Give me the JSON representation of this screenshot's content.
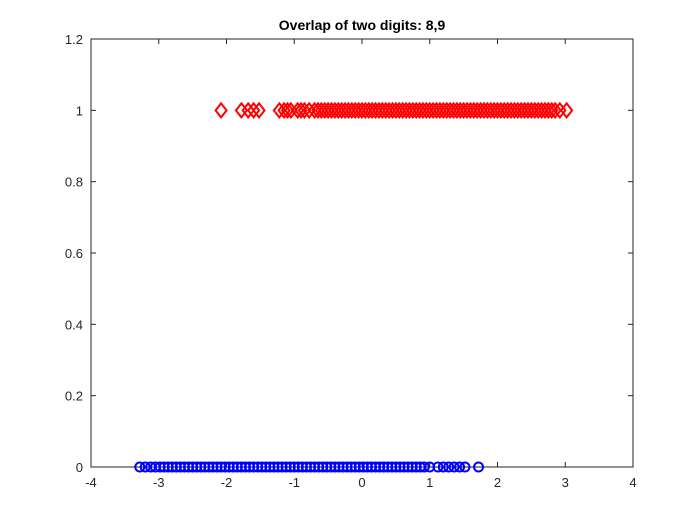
{
  "chart_data": {
    "type": "scatter",
    "title": "Overlap of two digits: 8,9",
    "xlabel": "",
    "ylabel": "",
    "xlim": [
      -4,
      4
    ],
    "ylim": [
      0,
      1.2
    ],
    "xticks": [
      "-4",
      "-3",
      "-2",
      "-1",
      "0",
      "1",
      "2",
      "3",
      "4"
    ],
    "yticks": [
      "0",
      "0.2",
      "0.4",
      "0.6",
      "0.8",
      "1",
      "1.2"
    ],
    "grid": false,
    "legend": "none",
    "series": [
      {
        "marker": "diamond",
        "color": "#ff0000",
        "y": 1,
        "x": [
          -2.08,
          -1.78,
          -1.68,
          -1.6,
          -1.52,
          -1.22,
          -1.15,
          -1.1,
          -1.05,
          -0.95,
          -0.9,
          -0.85,
          -0.78,
          -0.7,
          -0.65,
          -0.6,
          -0.55,
          -0.5,
          -0.45,
          -0.4,
          -0.35,
          -0.3,
          -0.25,
          -0.2,
          -0.15,
          -0.1,
          -0.05,
          0.0,
          0.05,
          0.1,
          0.15,
          0.2,
          0.25,
          0.3,
          0.35,
          0.4,
          0.45,
          0.5,
          0.55,
          0.6,
          0.65,
          0.7,
          0.75,
          0.8,
          0.85,
          0.9,
          0.95,
          1.0,
          1.05,
          1.1,
          1.15,
          1.2,
          1.25,
          1.3,
          1.35,
          1.4,
          1.45,
          1.5,
          1.55,
          1.6,
          1.65,
          1.7,
          1.75,
          1.8,
          1.85,
          1.9,
          1.95,
          2.0,
          2.05,
          2.1,
          2.15,
          2.2,
          2.25,
          2.3,
          2.35,
          2.4,
          2.45,
          2.5,
          2.55,
          2.6,
          2.65,
          2.7,
          2.75,
          2.8,
          2.85,
          2.92,
          3.02
        ]
      },
      {
        "marker": "circle",
        "color": "#0000ff",
        "y": 0,
        "x": [
          -3.28,
          -3.2,
          -3.12,
          -3.05,
          -2.98,
          -2.92,
          -2.86,
          -2.8,
          -2.74,
          -2.68,
          -2.62,
          -2.56,
          -2.5,
          -2.44,
          -2.38,
          -2.32,
          -2.26,
          -2.2,
          -2.14,
          -2.08,
          -2.02,
          -1.96,
          -1.9,
          -1.84,
          -1.78,
          -1.72,
          -1.66,
          -1.6,
          -1.54,
          -1.48,
          -1.42,
          -1.36,
          -1.3,
          -1.24,
          -1.18,
          -1.12,
          -1.06,
          -1.0,
          -0.94,
          -0.88,
          -0.82,
          -0.76,
          -0.7,
          -0.64,
          -0.58,
          -0.52,
          -0.46,
          -0.4,
          -0.34,
          -0.28,
          -0.22,
          -0.16,
          -0.1,
          -0.04,
          0.02,
          0.08,
          0.14,
          0.2,
          0.26,
          0.32,
          0.38,
          0.44,
          0.5,
          0.56,
          0.62,
          0.68,
          0.74,
          0.8,
          0.86,
          0.92,
          1.0,
          1.12,
          1.2,
          1.28,
          1.36,
          1.44,
          1.52,
          1.72
        ]
      }
    ]
  }
}
